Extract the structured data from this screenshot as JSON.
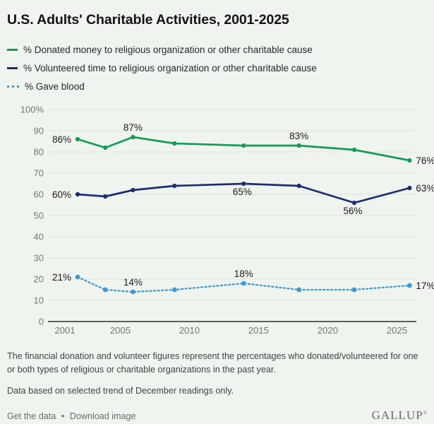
{
  "title": "U.S. Adults' Charitable Activities, 2001-2025",
  "legend": [
    {
      "label": "% Donated money to religious organization or other charitable cause",
      "color": "#169a57",
      "line_style": "solid"
    },
    {
      "label": "% Volunteered time to religious organization or other charitable cause",
      "color": "#1b2d75",
      "line_style": "solid"
    },
    {
      "label": "% Gave blood",
      "color": "#3f97d3",
      "line_style": "dotted"
    }
  ],
  "chart_data": {
    "type": "line",
    "title": "U.S. Adults' Charitable Activities, 2001-2025",
    "x": [
      2001,
      2003,
      2005,
      2008,
      2013,
      2017,
      2021,
      2025
    ],
    "xticks": [
      2001,
      2005,
      2010,
      2015,
      2020,
      2025
    ],
    "ylim": [
      0,
      100
    ],
    "ytick_labels": [
      "0",
      "10",
      "20",
      "30",
      "40",
      "50",
      "60",
      "70",
      "80",
      "90",
      "100%"
    ],
    "grid": true,
    "legend_position": "top",
    "series": [
      {
        "name": "% Donated money to religious organization or other charitable cause",
        "color": "#169a57",
        "line_style": "solid",
        "values": [
          86,
          82,
          87,
          84,
          83,
          83,
          81,
          76
        ],
        "labels": [
          {
            "x": 2001,
            "text": "86%",
            "pos": "left"
          },
          {
            "x": 2005,
            "text": "87%",
            "pos": "above"
          },
          {
            "x": 2017,
            "text": "83%",
            "pos": "above"
          },
          {
            "x": 2025,
            "text": "76%",
            "pos": "right"
          }
        ]
      },
      {
        "name": "% Volunteered time to religious organization or other charitable cause",
        "color": "#1b2d75",
        "line_style": "solid",
        "values": [
          60,
          59,
          62,
          64,
          65,
          64,
          56,
          63
        ],
        "labels": [
          {
            "x": 2001,
            "text": "60%",
            "pos": "left"
          },
          {
            "x": 2013,
            "text": "65%",
            "pos": "below"
          },
          {
            "x": 2021,
            "text": "56%",
            "pos": "below"
          },
          {
            "x": 2025,
            "text": "63%",
            "pos": "right"
          }
        ]
      },
      {
        "name": "% Gave blood",
        "color": "#3f97d3",
        "line_style": "dotted",
        "values": [
          21,
          15,
          14,
          15,
          18,
          15,
          15,
          17
        ],
        "labels": [
          {
            "x": 2001,
            "text": "21%",
            "pos": "left"
          },
          {
            "x": 2005,
            "text": "14%",
            "pos": "above"
          },
          {
            "x": 2013,
            "text": "18%",
            "pos": "above"
          },
          {
            "x": 2025,
            "text": "17%",
            "pos": "right"
          }
        ]
      }
    ]
  },
  "footnotes": [
    "The financial donation and volunteer figures represent the percentages who donated/volunteered for one or both types of religious or charitable organizations in the past year.",
    "Data based on selected trend of December readings only."
  ],
  "footer": {
    "get_data_label": "Get the data",
    "separator": "•",
    "download_label": "Download image",
    "brand": "GALLUP",
    "brand_mark": "®"
  },
  "colors": {
    "background": "#eff4ee",
    "gridline": "#dce3d9",
    "axis": "#2e2e2e",
    "tick_text": "#717a73",
    "point_label_text": "#1c1c1c"
  }
}
